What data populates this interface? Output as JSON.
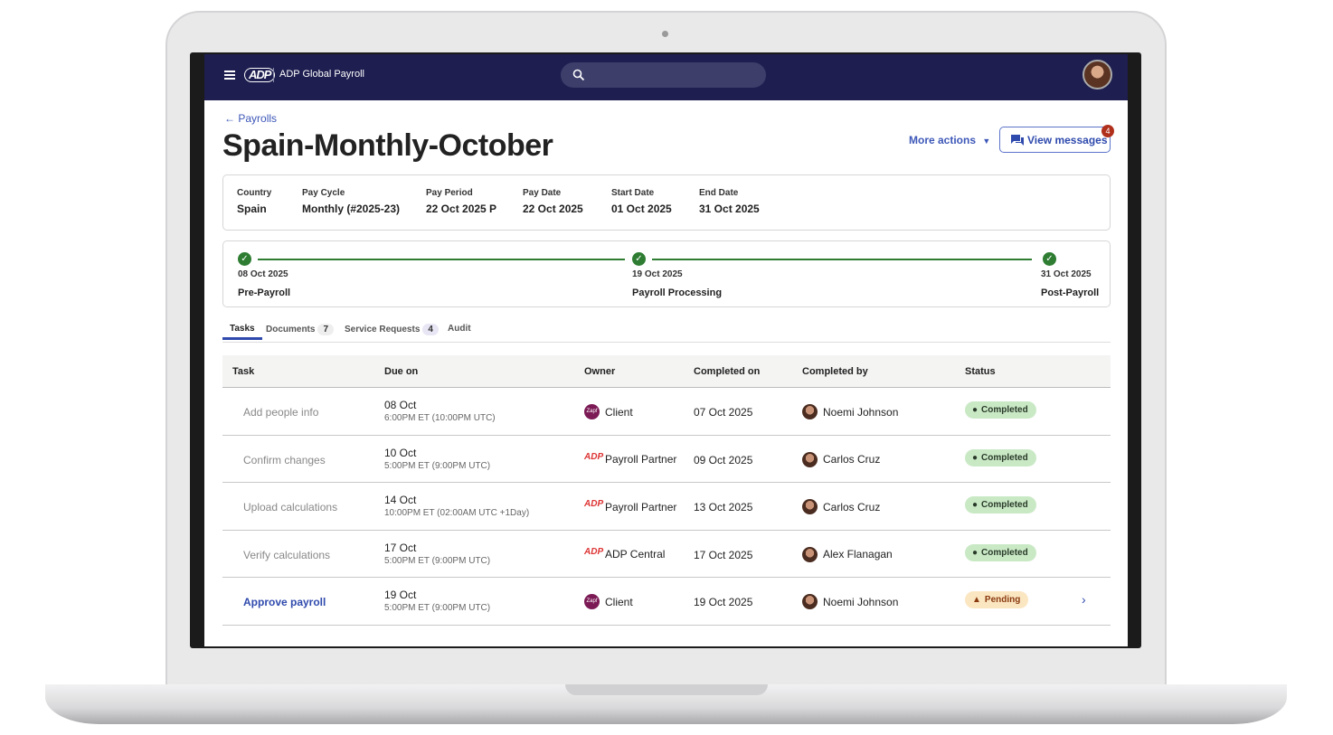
{
  "header": {
    "app_title": "ADP Global Payroll",
    "logo": "ADP",
    "search_placeholder": ""
  },
  "back_link": "Payrolls",
  "page_title": "Spain-Monthly-October",
  "actions": {
    "more_actions": "More actions",
    "view_messages": "View messages",
    "message_count": "4"
  },
  "info": [
    {
      "label": "Country",
      "value": "Spain"
    },
    {
      "label": "Pay Cycle",
      "value": "Monthly (#2025-23)"
    },
    {
      "label": "Pay Period",
      "value": "22 Oct 2025 P"
    },
    {
      "label": "Pay Date",
      "value": "22 Oct 2025"
    },
    {
      "label": "Start Date",
      "value": "01 Oct 2025"
    },
    {
      "label": "End Date",
      "value": "31 Oct 2025"
    }
  ],
  "timeline": [
    {
      "date": "08 Oct 2025",
      "name": "Pre-Payroll",
      "done": true
    },
    {
      "date": "19 Oct 2025",
      "name": "Payroll Processing",
      "done": true
    },
    {
      "date": "31 Oct 2025",
      "name": "Post-Payroll",
      "done": true
    }
  ],
  "tabs": [
    {
      "label": "Tasks",
      "active": true
    },
    {
      "label": "Documents",
      "count": "7"
    },
    {
      "label": "Service Requests",
      "count": "4"
    },
    {
      "label": "Audit"
    }
  ],
  "table": {
    "headers": [
      "Task",
      "Due on",
      "Owner",
      "Completed on",
      "Completed by",
      "Status"
    ],
    "rows": [
      {
        "task": "Add people info",
        "due": "08 Oct",
        "due_time": "6:00PM ET (10:00PM UTC)",
        "owner": "Client",
        "owner_logo": "Zapf",
        "completed_on": "07 Oct 2025",
        "completed_by": "Noemi Johnson",
        "status": "Completed"
      },
      {
        "task": "Confirm changes",
        "due": "10 Oct",
        "due_time": "5:00PM ET (9:00PM UTC)",
        "owner": "Payroll Partner",
        "owner_logo": "ADP",
        "completed_on": "09 Oct 2025",
        "completed_by": "Carlos Cruz",
        "status": "Completed"
      },
      {
        "task": "Upload calculations",
        "due": "14 Oct",
        "due_time": "10:00PM ET (02:00AM UTC +1Day)",
        "owner": "Payroll Partner",
        "owner_logo": "ADP",
        "completed_on": "13 Oct 2025",
        "completed_by": "Carlos Cruz",
        "status": "Completed"
      },
      {
        "task": "Verify calculations",
        "due": "17 Oct",
        "due_time": "5:00PM ET (9:00PM UTC)",
        "owner": "ADP Central",
        "owner_logo": "ADP",
        "completed_on": "17 Oct 2025",
        "completed_by": "Alex Flanagan",
        "status": "Completed"
      },
      {
        "task": "Approve payroll",
        "due": "19 Oct",
        "due_time": "5:00PM ET (9:00PM UTC)",
        "owner": "Client",
        "owner_logo": "Zapf",
        "completed_on": "19 Oct 2025",
        "completed_by": "Noemi Johnson",
        "status": "Pending"
      }
    ]
  },
  "colors": {
    "header_bg": "#1e1e50",
    "accent": "#2f4aad",
    "success": "#2e7d32",
    "completed_bg": "#c9e9c5",
    "pending_bg": "#fbe6c2",
    "badge": "#b0301c"
  }
}
